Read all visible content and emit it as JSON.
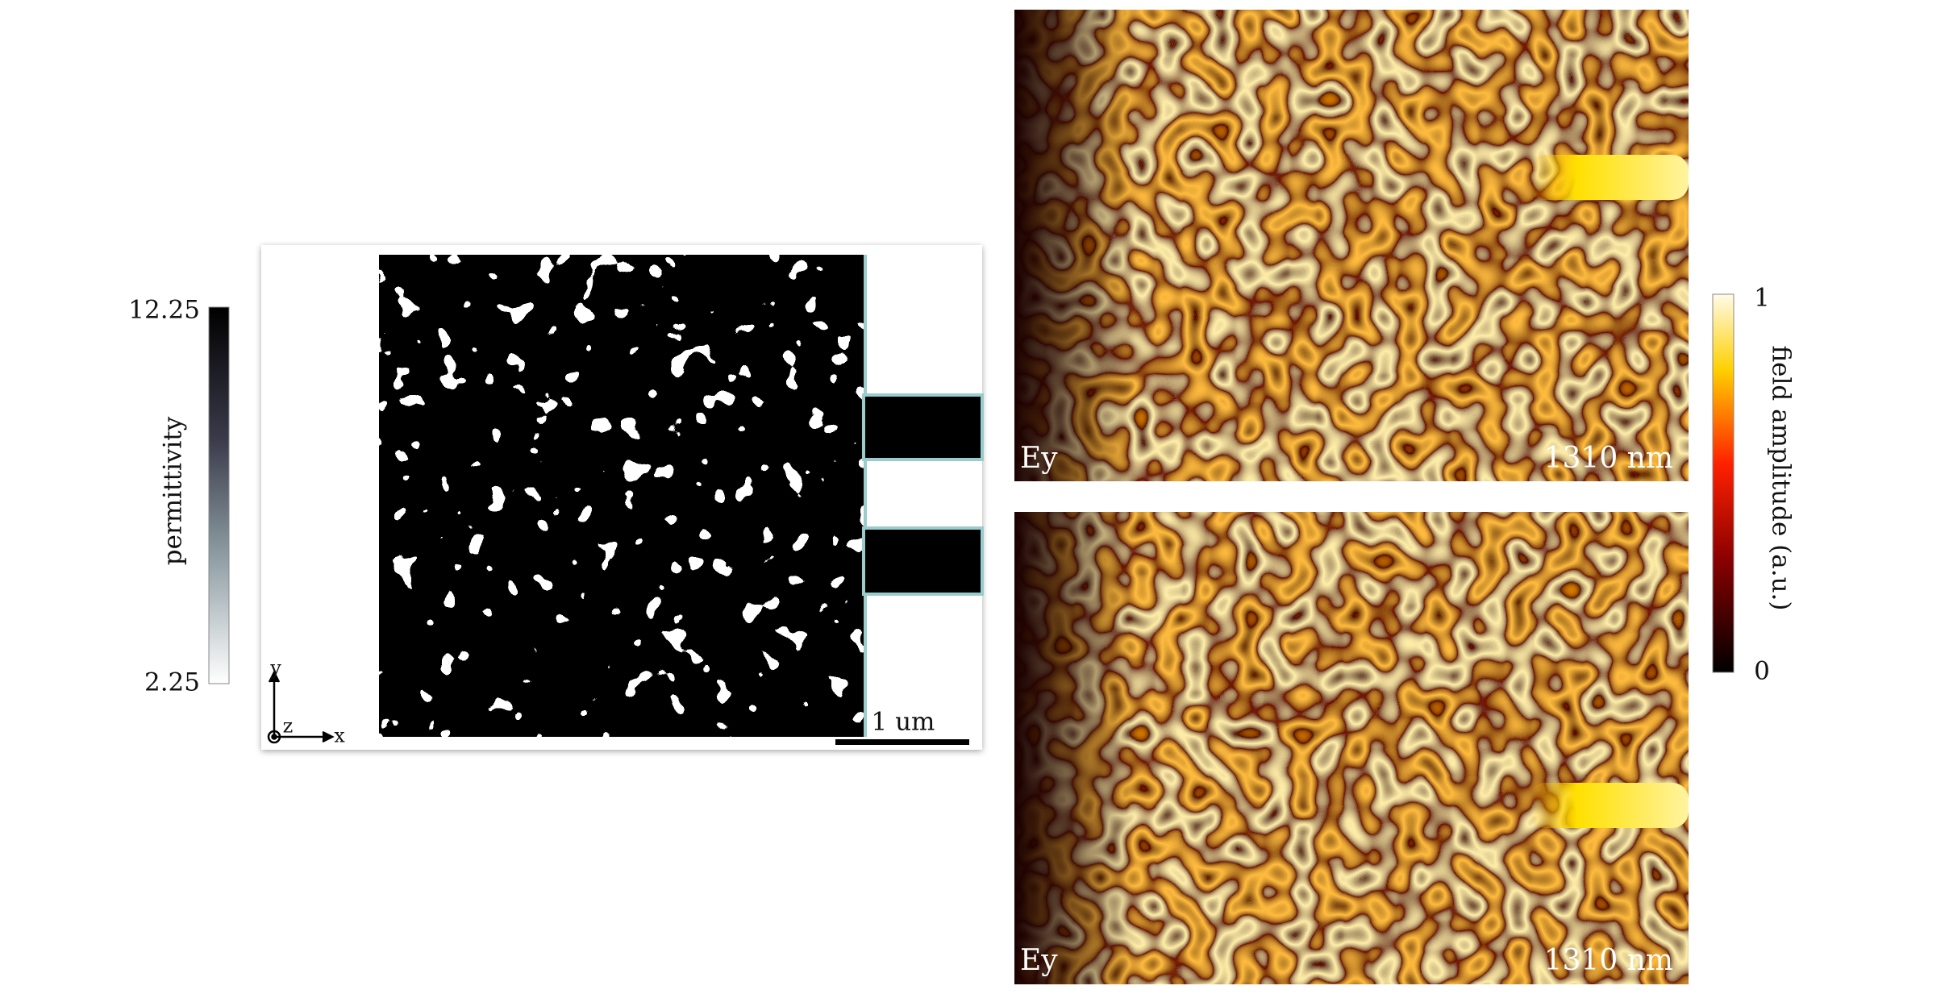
{
  "permittivity_colorbar": {
    "label": "permittivity",
    "max": 12.25,
    "min": 2.25
  },
  "design": {
    "axes": {
      "y": "y",
      "z": "z",
      "x": "x"
    },
    "scale_bar": "1 um"
  },
  "fields": [
    {
      "component": "Ey",
      "wavelength": "1310 nm"
    },
    {
      "component": "Ey",
      "wavelength": "1310 nm"
    }
  ],
  "field_colorbar": {
    "label": "field amplitude (a.u.)",
    "max": 1,
    "min": 0
  }
}
